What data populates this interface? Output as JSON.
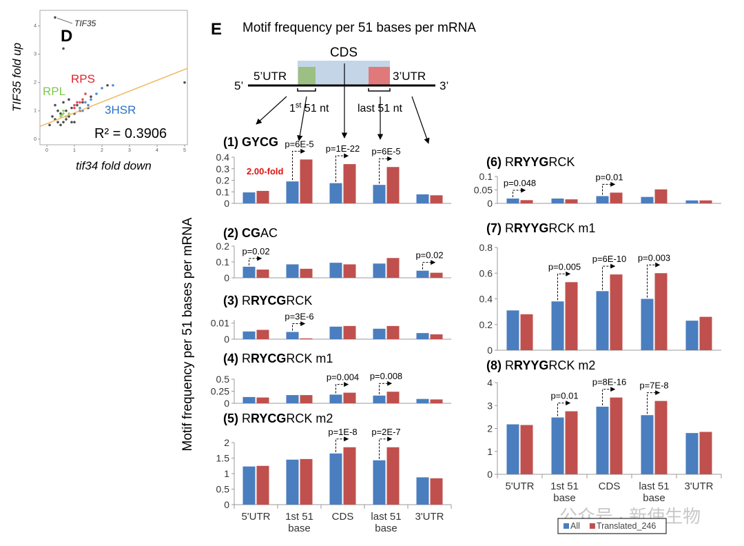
{
  "panel_labels": [
    "D",
    "E"
  ],
  "figure_title": "Motif frequency per 51 bases per mRNA",
  "y_axis_label": "Motif frequency per 51 bases per mRNA",
  "diagram": {
    "cds": "CDS",
    "utr5": "5’UTR",
    "utr3": "3’UTR",
    "end5": "5’",
    "end3": "3’",
    "first_label": [
      "1",
      "st",
      " 51 nt"
    ],
    "last_label": "last 51 nt"
  },
  "watermark": "公众号 · 新使生物",
  "chart_data": [
    {
      "type": "scatter",
      "x_label": "tif34 fold down",
      "y_label": "TIF35 fold up",
      "annotation": "R² = 0.3906",
      "xlim": [
        -0.25,
        5.1
      ],
      "ylim": [
        -0.2,
        4.55
      ],
      "xticks": [
        0,
        1,
        2,
        3,
        4,
        5
      ],
      "yticks": [
        0,
        1,
        2,
        3,
        4
      ],
      "fit": {
        "color": "#f0b860",
        "x": [
          -0.25,
          5.1
        ],
        "y": [
          0.45,
          2.5
        ]
      },
      "series": [
        {
          "color": "#222222",
          "x": [
            0.3,
            0.5,
            0.6,
            0.7,
            0.8,
            0.9,
            1.0,
            0.4,
            0.5,
            1.1,
            1.2,
            0.7,
            0.9,
            1.3,
            0.6,
            0.2,
            1.5,
            0.8,
            1.0,
            0.4,
            2.2,
            5.0,
            0.1,
            1.6,
            0.3,
            0.6
          ],
          "y": [
            0.7,
            0.9,
            0.6,
            1.0,
            0.8,
            1.1,
            0.9,
            1.0,
            0.5,
            1.2,
            1.0,
            0.7,
            0.6,
            1.3,
            1.3,
            0.8,
            1.1,
            1.4,
            0.6,
            0.6,
            1.9,
            2.0,
            0.5,
            1.5,
            1.2,
            3.2
          ]
        },
        {
          "name": "RPL",
          "color": "#7cc84a",
          "x": [
            0.5,
            0.6,
            0.7,
            0.6,
            0.8,
            0.55
          ],
          "y": [
            0.8,
            0.9,
            0.8,
            1.0,
            0.9,
            0.85
          ]
        },
        {
          "name": "RPS",
          "color": "#e0202a",
          "x": [
            1.0,
            1.1,
            1.2,
            1.0,
            1.3,
            1.4
          ],
          "y": [
            1.2,
            1.3,
            1.3,
            1.1,
            1.4,
            1.6
          ]
        },
        {
          "name": "3HSR",
          "color": "#2a6fc9",
          "x": [
            1.2,
            1.4,
            1.6,
            1.8,
            2.0,
            1.5,
            2.4,
            1.3
          ],
          "y": [
            1.1,
            1.3,
            1.4,
            1.6,
            1.8,
            1.2,
            1.9,
            1.0
          ]
        },
        {
          "name": "TIF35",
          "color": "#222222",
          "x": [
            0.3
          ],
          "y": [
            4.3
          ]
        }
      ]
    },
    {
      "type": "bar",
      "title_parts": [
        {
          "text": "(1) GYCG",
          "bold": true
        }
      ],
      "ylim": [
        0,
        0.4
      ],
      "yticks": [
        0,
        0.1,
        0.2,
        0.3,
        0.4
      ],
      "series": [
        {
          "color": "#4a7ebf",
          "values": [
            0.095,
            0.19,
            0.175,
            0.16,
            0.078
          ]
        },
        {
          "color": "#c0504d",
          "values": [
            0.108,
            0.38,
            0.34,
            0.315,
            0.07
          ]
        }
      ],
      "annotations": [
        null,
        "p=6E-5",
        "p=1E-22",
        "p=6E-5",
        null
      ],
      "fold_note": {
        "text": "2.00-fold",
        "color": "#e01010"
      }
    },
    {
      "type": "bar",
      "title_parts": [
        {
          "text": "(2) CG",
          "bold": true
        },
        {
          "text": "AC",
          "bold": false
        }
      ],
      "ylim": [
        0,
        0.2
      ],
      "yticks": [
        0,
        0.1,
        0.2
      ],
      "series": [
        {
          "color": "#4a7ebf",
          "values": [
            0.07,
            0.085,
            0.095,
            0.09,
            0.045
          ]
        },
        {
          "color": "#c0504d",
          "values": [
            0.052,
            0.057,
            0.085,
            0.125,
            0.032
          ]
        }
      ],
      "annotations": [
        "p=0.02",
        null,
        null,
        null,
        "p=0.02"
      ]
    },
    {
      "type": "bar",
      "title_parts": [
        {
          "text": "(3)",
          "bold": true
        },
        {
          "text": " R",
          "bold": false
        },
        {
          "text": "RYCG",
          "bold": true
        },
        {
          "text": "RCK",
          "bold": false
        }
      ],
      "ylim": [
        0,
        0.012
      ],
      "yticks": [
        0,
        0.01
      ],
      "series": [
        {
          "color": "#4a7ebf",
          "values": [
            0.0048,
            0.0045,
            0.0078,
            0.0065,
            0.0038
          ]
        },
        {
          "color": "#c0504d",
          "values": [
            0.0058,
            0.0005,
            0.0082,
            0.0082,
            0.003
          ]
        }
      ],
      "annotations": [
        null,
        "p=3E-6",
        null,
        null,
        null
      ]
    },
    {
      "type": "bar",
      "title_parts": [
        {
          "text": "(4)",
          "bold": true
        },
        {
          "text": " R",
          "bold": false
        },
        {
          "text": "RYCG",
          "bold": true
        },
        {
          "text": "RCK m1",
          "bold": false
        }
      ],
      "ylim": [
        0,
        0.5
      ],
      "yticks": [
        0,
        0.25,
        0.5
      ],
      "series": [
        {
          "color": "#4a7ebf",
          "values": [
            0.13,
            0.17,
            0.18,
            0.16,
            0.09
          ]
        },
        {
          "color": "#c0504d",
          "values": [
            0.12,
            0.17,
            0.22,
            0.24,
            0.08
          ]
        }
      ],
      "annotations": [
        null,
        null,
        "p=0.004",
        "p=0.008",
        null
      ]
    },
    {
      "type": "bar",
      "title_parts": [
        {
          "text": "(5)",
          "bold": true
        },
        {
          "text": " R",
          "bold": false
        },
        {
          "text": "RYCG",
          "bold": true
        },
        {
          "text": "RCK m2",
          "bold": false
        }
      ],
      "ylim": [
        0,
        2
      ],
      "yticks": [
        0,
        0.5,
        1,
        1.5,
        2
      ],
      "categories": [
        "5'UTR",
        "1st 51 base",
        "CDS",
        "last 51 base",
        "3'UTR"
      ],
      "series": [
        {
          "color": "#4a7ebf",
          "values": [
            1.23,
            1.45,
            1.65,
            1.43,
            0.88
          ]
        },
        {
          "color": "#c0504d",
          "values": [
            1.25,
            1.47,
            1.85,
            1.85,
            0.85
          ]
        }
      ],
      "annotations": [
        null,
        null,
        "p=1E-8",
        "p=2E-7",
        null
      ]
    },
    {
      "type": "bar",
      "title_parts": [
        {
          "text": "(6)",
          "bold": true
        },
        {
          "text": " R",
          "bold": false
        },
        {
          "text": "RYYG",
          "bold": true
        },
        {
          "text": "RCK",
          "bold": false
        }
      ],
      "ylim": [
        0,
        0.1
      ],
      "yticks": [
        0,
        0.05,
        0.1
      ],
      "series": [
        {
          "color": "#4a7ebf",
          "values": [
            0.018,
            0.018,
            0.027,
            0.024,
            0.011
          ]
        },
        {
          "color": "#c0504d",
          "values": [
            0.012,
            0.015,
            0.04,
            0.052,
            0.011
          ]
        }
      ],
      "annotations": [
        "p=0.048",
        null,
        "p=0.01",
        null,
        null
      ]
    },
    {
      "type": "bar",
      "title_parts": [
        {
          "text": "(7)",
          "bold": true
        },
        {
          "text": " R",
          "bold": false
        },
        {
          "text": "RYYG",
          "bold": true
        },
        {
          "text": "RCK m1",
          "bold": false
        }
      ],
      "ylim": [
        0,
        0.8
      ],
      "yticks": [
        0,
        0.2,
        0.4,
        0.6,
        0.8
      ],
      "series": [
        {
          "color": "#4a7ebf",
          "values": [
            0.31,
            0.38,
            0.46,
            0.4,
            0.23
          ]
        },
        {
          "color": "#c0504d",
          "values": [
            0.28,
            0.53,
            0.59,
            0.6,
            0.26
          ]
        }
      ],
      "annotations": [
        null,
        "p=0.005",
        "p=6E-10",
        "p=0.003",
        null
      ]
    },
    {
      "type": "bar",
      "title_parts": [
        {
          "text": "(8)",
          "bold": true
        },
        {
          "text": " R",
          "bold": false
        },
        {
          "text": "RYYG",
          "bold": true
        },
        {
          "text": "RCK m2",
          "bold": false
        }
      ],
      "ylim": [
        0,
        4
      ],
      "yticks": [
        0,
        1,
        2,
        3,
        4
      ],
      "categories": [
        "5'UTR",
        "1st 51 base",
        "CDS",
        "last 51 base",
        "3'UTR"
      ],
      "series": [
        {
          "name": "All",
          "color": "#4a7ebf",
          "values": [
            2.18,
            2.48,
            2.95,
            2.58,
            1.8
          ]
        },
        {
          "name": "Translated_246",
          "color": "#c0504d",
          "values": [
            2.15,
            2.75,
            3.35,
            3.2,
            1.85
          ]
        }
      ],
      "annotations": [
        null,
        "p=0.01",
        "p=8E-16",
        "p=7E-8",
        null
      ]
    }
  ]
}
